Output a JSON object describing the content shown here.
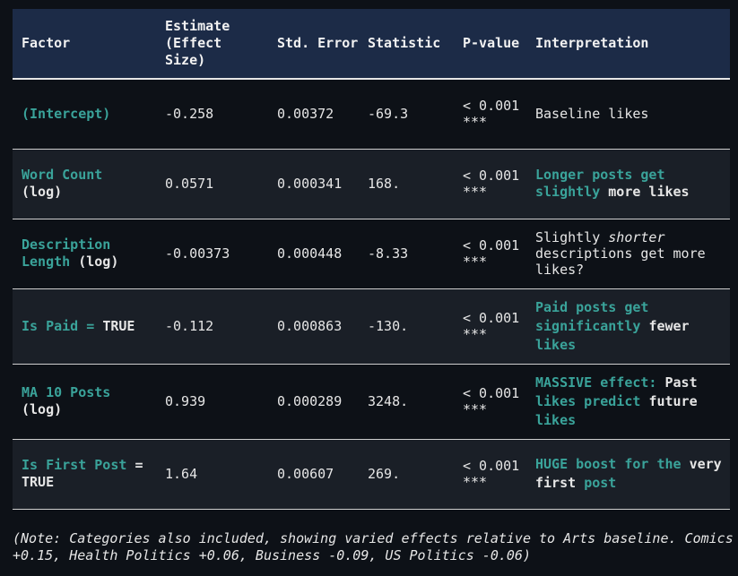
{
  "table": {
    "header": [
      "Factor",
      "Estimate (Effect Size)",
      "Std. Error",
      "Statistic",
      "P-value",
      "Interpretation"
    ],
    "rows": [
      {
        "factor": [
          "(Intercept)"
        ],
        "estimate": "-0.258",
        "std_error": "0.00372",
        "statistic": "-69.3",
        "p_value": "< 0.001 ***",
        "interpretation": [
          "Baseline likes"
        ]
      },
      {
        "factor": [
          "Word Count",
          "(log)"
        ],
        "estimate": "0.0571",
        "std_error": "0.000341",
        "statistic": "168.",
        "p_value": "< 0.001 ***",
        "interpretation": [
          "Longer posts get slightly",
          "more likes"
        ]
      },
      {
        "factor": [
          "Description Length",
          "(log)"
        ],
        "estimate": "-0.00373",
        "std_error": "0.000448",
        "statistic": "-8.33",
        "p_value": "< 0.001 ***",
        "interpretation": [
          "Slightly",
          "shorter",
          "descriptions get more likes?"
        ]
      },
      {
        "factor": [
          "Is Paid =",
          "TRUE"
        ],
        "estimate": "-0.112",
        "std_error": "0.000863",
        "statistic": "-130.",
        "p_value": "< 0.001 ***",
        "interpretation": [
          "Paid posts get significantly",
          "fewer",
          "likes"
        ]
      },
      {
        "factor": [
          "MA 10 Posts",
          "(log)"
        ],
        "estimate": "0.939",
        "std_error": "0.000289",
        "statistic": "3248.",
        "p_value": "< 0.001 ***",
        "interpretation": [
          "MASSIVE effect:",
          "Past",
          "likes predict",
          "future",
          "likes"
        ]
      },
      {
        "factor": [
          "Is First Post",
          "= TRUE"
        ],
        "estimate": "1.64",
        "std_error": "0.00607",
        "statistic": "269.",
        "p_value": "< 0.001 ***",
        "interpretation": [
          "HUGE boost for the",
          "very first",
          "post"
        ]
      }
    ]
  },
  "note": "(Note: Categories also included, showing varied effects relative to Arts baseline. Comics +0.15, Health Politics +0.06, Business -0.09, US Politics -0.06)"
}
